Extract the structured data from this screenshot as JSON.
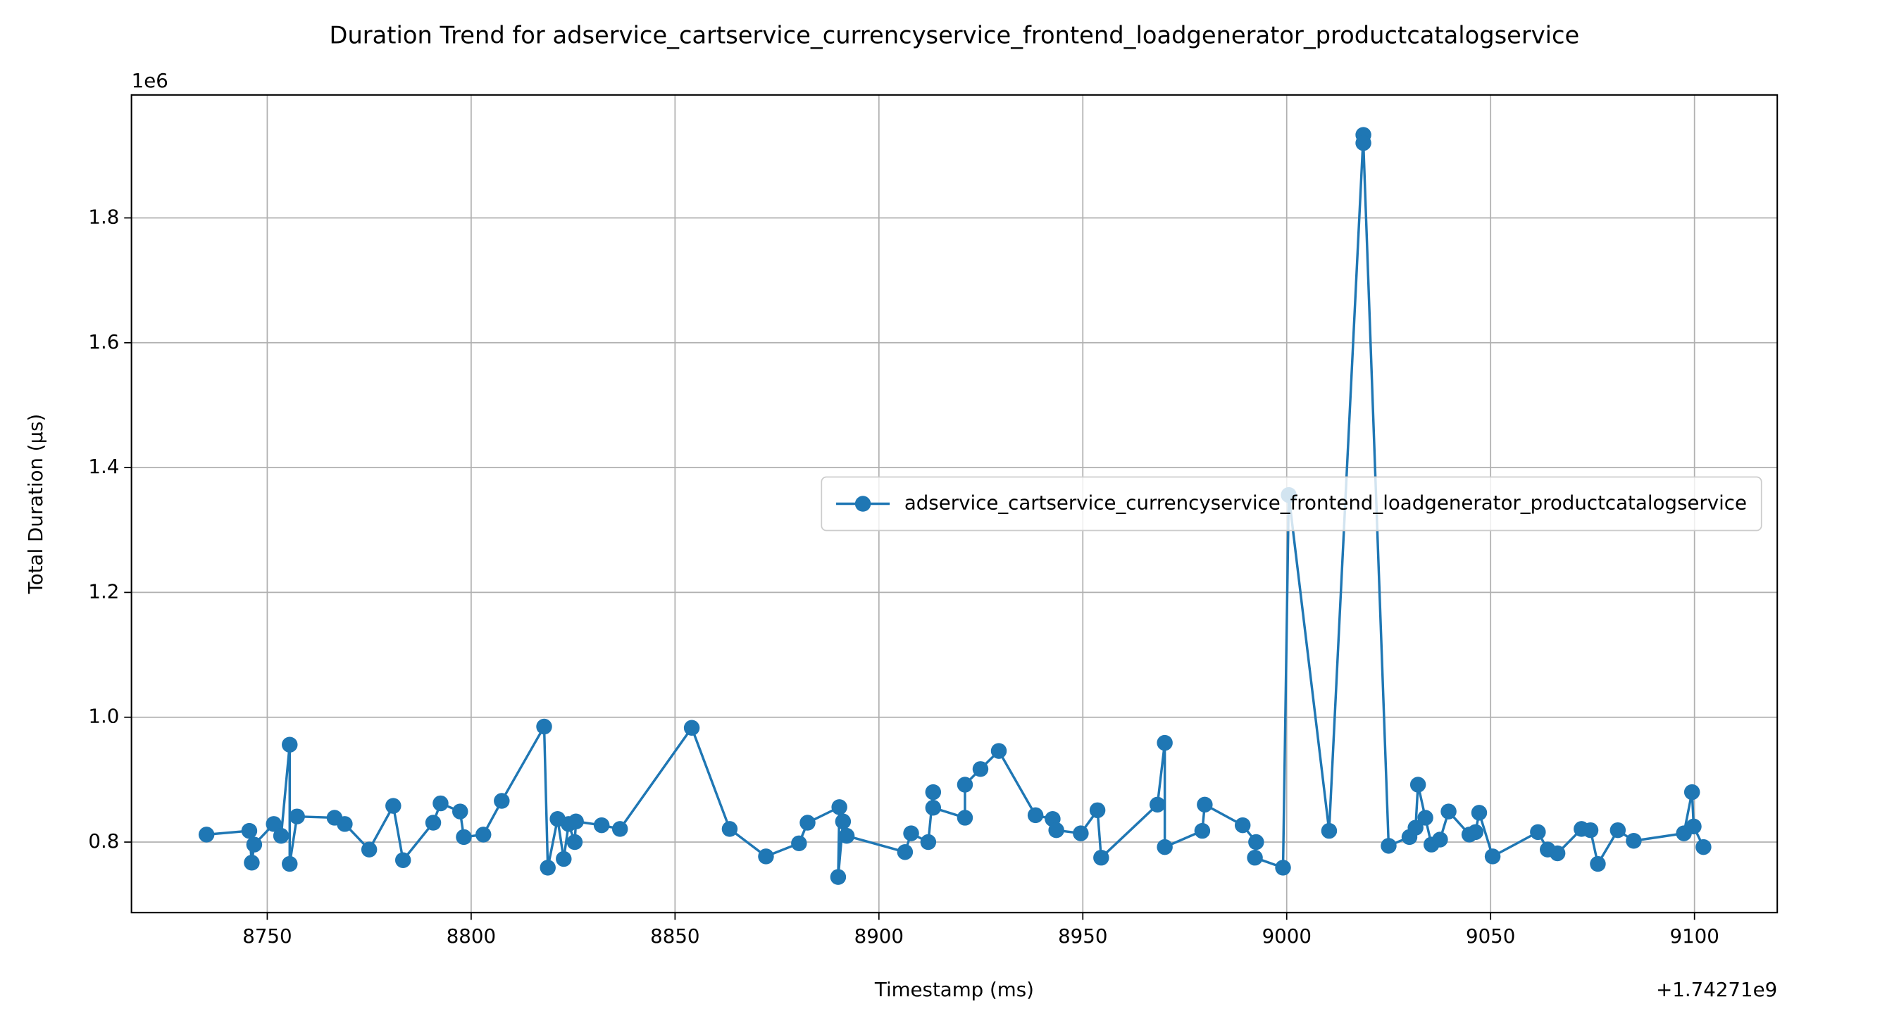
{
  "chart_data": {
    "type": "line",
    "title": "Duration Trend for adservice_cartservice_currencyservice_frontend_loadgenerator_productcatalogservice",
    "x_label": "Timestamp (ms)",
    "y_label": "Total Duration (µs)",
    "x_offset_text": "+1.74271e9",
    "y_offset_text": "1e6",
    "x": [
      8735.1,
      8745.6,
      8746.2,
      8746.8,
      8751.6,
      8753.4,
      8755.5,
      8755.5,
      8757.3,
      8766.5,
      8769.0,
      8775.0,
      8780.9,
      8783.3,
      8790.7,
      8792.5,
      8797.3,
      8798.2,
      8803.0,
      8807.5,
      8817.9,
      8818.8,
      8821.2,
      8822.7,
      8823.9,
      8825.4,
      8825.7,
      8832.0,
      8836.5,
      8854.1,
      8863.4,
      8872.3,
      8880.4,
      8882.5,
      8890.3,
      8890.0,
      8891.2,
      8892.1,
      8906.4,
      8907.9,
      8912.1,
      8913.3,
      8913.3,
      8921.1,
      8921.1,
      8924.9,
      8929.4,
      8938.4,
      8942.6,
      8943.5,
      8949.5,
      8953.6,
      8954.5,
      8968.3,
      8970.1,
      8970.1,
      8979.3,
      8979.9,
      8989.2,
      8992.5,
      8992.2,
      8999.1,
      9000.5,
      9010.4,
      9018.8,
      9018.8,
      9025.0,
      9030.1,
      9031.6,
      9032.2,
      9034.0,
      9035.5,
      9037.6,
      9039.7,
      9044.8,
      9046.3,
      9047.2,
      9050.5,
      9061.6,
      9064.0,
      9066.4,
      9072.3,
      9074.5,
      9076.3,
      9081.2,
      9085.1,
      9097.4,
      9099.4,
      9099.8,
      9102.2
    ],
    "series": [
      {
        "name": "adservice_cartservice_currencyservice_frontend_loadgenerator_productcatalogservice",
        "color": "#1f77b4",
        "marker": "o",
        "values": [
          0.812,
          0.818,
          0.767,
          0.796,
          0.829,
          0.81,
          0.956,
          0.765,
          0.841,
          0.839,
          0.829,
          0.788,
          0.858,
          0.771,
          0.831,
          0.862,
          0.849,
          0.808,
          0.812,
          0.866,
          0.985,
          0.759,
          0.837,
          0.773,
          0.829,
          0.8,
          0.833,
          0.827,
          0.821,
          0.983,
          0.821,
          0.777,
          0.798,
          0.831,
          0.856,
          0.744,
          0.833,
          0.81,
          0.784,
          0.814,
          0.8,
          0.88,
          0.855,
          0.839,
          0.892,
          0.917,
          0.946,
          0.843,
          0.837,
          0.819,
          0.814,
          0.851,
          0.775,
          0.86,
          0.959,
          0.792,
          0.818,
          0.86,
          0.827,
          0.8,
          0.775,
          0.759,
          1.356,
          0.818,
          1.933,
          1.92,
          0.794,
          0.808,
          0.823,
          0.892,
          0.839,
          0.796,
          0.804,
          0.849,
          0.812,
          0.816,
          0.847,
          0.777,
          0.816,
          0.788,
          0.782,
          0.821,
          0.819,
          0.765,
          0.819,
          0.802,
          0.814,
          0.88,
          0.825,
          0.792
        ]
      }
    ],
    "xlim": [
      8716.7,
      9120.3
    ],
    "ylim": [
      0.687,
      1.997
    ],
    "xticks": [
      8750,
      8800,
      8850,
      8900,
      8950,
      9000,
      9050,
      9100
    ],
    "yticks": [
      0.8,
      {
        "value": 1.0,
        "label": "1.0"
      },
      1.2,
      1.4,
      1.6,
      1.8
    ],
    "grid": true,
    "legend_loc": "center right"
  }
}
